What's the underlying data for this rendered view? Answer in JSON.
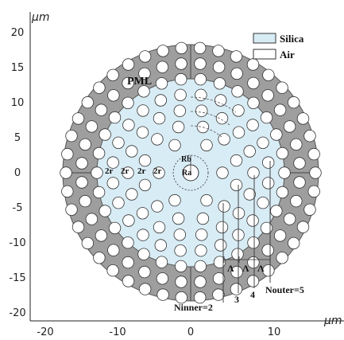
{
  "axes": {
    "y_unit": "μm",
    "x_unit": "μm",
    "y_ticks": [
      "20",
      "15",
      "10",
      "5",
      "0",
      "-5",
      "-10",
      "-15",
      "-20"
    ],
    "x_ticks": [
      "-20",
      "-10",
      "0",
      "10"
    ]
  },
  "legend": {
    "silica": "Silica",
    "air": "Air"
  },
  "labels": {
    "pml": "PML",
    "rb": "Rb",
    "ra": "Ra",
    "two_r": "2r",
    "lambda": "Λ",
    "ninner": "Ninner=2",
    "three": "3",
    "four": "4",
    "nouter": "Nouter=5"
  },
  "colors": {
    "pml": "#9e9e9e",
    "silica": "#d8ecf5",
    "air": "#ffffff",
    "stroke": "#333333"
  },
  "structure": {
    "pml_outer_radius": 15,
    "silica_radius": 11,
    "ring_count": 7,
    "hole_counts": [
      6,
      12,
      18,
      24,
      30,
      36,
      42
    ]
  }
}
